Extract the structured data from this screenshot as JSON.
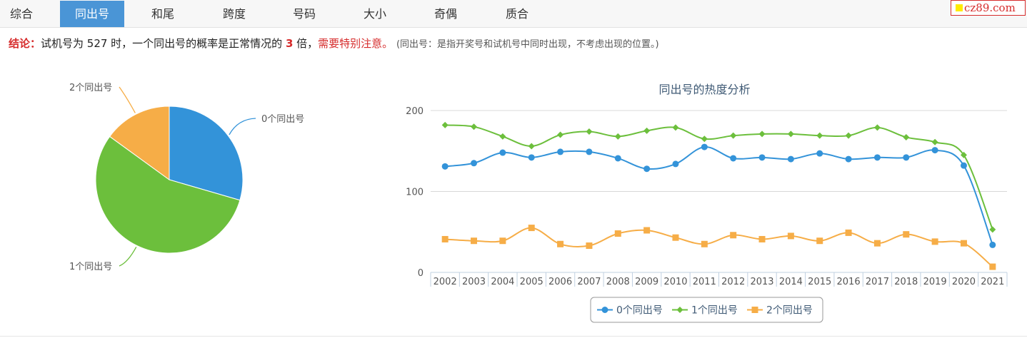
{
  "tabs": [
    {
      "label": "综合",
      "active": false
    },
    {
      "label": "同出号",
      "active": true
    },
    {
      "label": "和尾",
      "active": false
    },
    {
      "label": "跨度",
      "active": false
    },
    {
      "label": "号码",
      "active": false
    },
    {
      "label": "大小",
      "active": false
    },
    {
      "label": "奇偶",
      "active": false
    },
    {
      "label": "质合",
      "active": false
    }
  ],
  "site_badge": "cz89.com",
  "conclusion": {
    "label": "结论：",
    "text_before": "试机号为 527 时，一个同出号的概率是正常情况的 ",
    "multiple": "3",
    "text_after": " 倍，",
    "warning": "需要特别注意。",
    "note": "(同出号：是指开奖号和试机号中同时出现，不考虑出现的位置。)"
  },
  "chart_data": [
    {
      "type": "pie",
      "slices": [
        {
          "name": "0个同出号",
          "value": 29.5,
          "color": "#3393d9"
        },
        {
          "name": "1个同出号",
          "value": 55.5,
          "color": "#6cbf3c"
        },
        {
          "name": "2个同出号",
          "value": 15.0,
          "color": "#f6ad47"
        }
      ]
    },
    {
      "type": "line",
      "title": "同出号的热度分析",
      "categories": [
        "2002",
        "2003",
        "2004",
        "2005",
        "2006",
        "2007",
        "2008",
        "2009",
        "2010",
        "2011",
        "2012",
        "2013",
        "2014",
        "2015",
        "2016",
        "2017",
        "2018",
        "2019",
        "2020",
        "2021"
      ],
      "ylim": [
        0,
        200
      ],
      "yticks": [
        0,
        100,
        200
      ],
      "grid": true,
      "legend_position": "bottom",
      "series": [
        {
          "name": "0个同出号",
          "color": "#3393d9",
          "marker": "circle",
          "values": [
            131,
            135,
            148,
            142,
            149,
            149,
            141,
            128,
            134,
            155,
            141,
            142,
            140,
            147,
            140,
            142,
            142,
            151,
            132,
            34
          ]
        },
        {
          "name": "1个同出号",
          "color": "#6cbf3c",
          "marker": "diamond",
          "values": [
            182,
            180,
            168,
            156,
            170,
            174,
            168,
            175,
            179,
            165,
            169,
            171,
            171,
            169,
            169,
            179,
            167,
            161,
            145,
            53
          ]
        },
        {
          "name": "2个同出号",
          "color": "#f6ad47",
          "marker": "square",
          "values": [
            41,
            39,
            39,
            55,
            35,
            33,
            48,
            52,
            43,
            35,
            46,
            41,
            45,
            39,
            49,
            36,
            47,
            38,
            36,
            7
          ]
        }
      ]
    }
  ]
}
